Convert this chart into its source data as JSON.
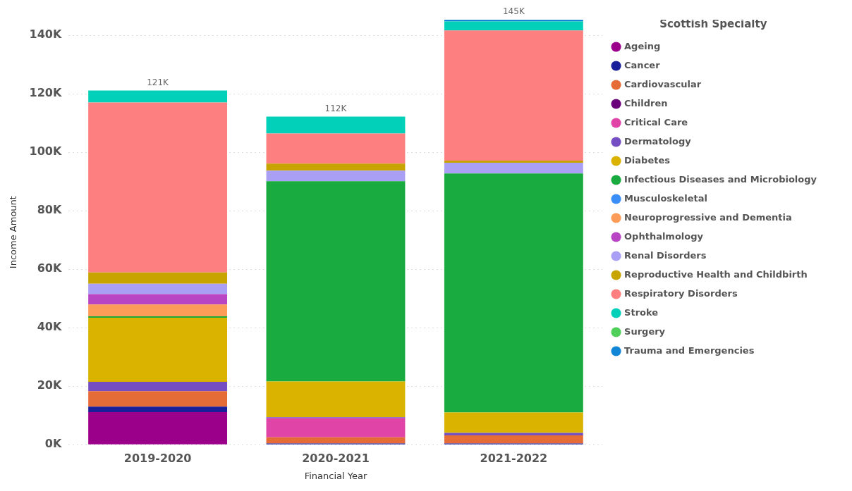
{
  "chart_data": {
    "type": "bar",
    "stacked": true,
    "xlabel": "Financial Year",
    "ylabel": "Income Amount",
    "legend_title": "Scottish Specialty",
    "legend": "right",
    "grid": "y",
    "categories": [
      "2019-2020",
      "2020-2021",
      "2021-2022"
    ],
    "ylim": [
      0,
      145300
    ],
    "yticks": [
      {
        "value": 0,
        "label": "0K"
      },
      {
        "value": 20000,
        "label": "20K"
      },
      {
        "value": 40000,
        "label": "40K"
      },
      {
        "value": 60000,
        "label": "60K"
      },
      {
        "value": 80000,
        "label": "80K"
      },
      {
        "value": 100000,
        "label": "100K"
      },
      {
        "value": 120000,
        "label": "120K"
      },
      {
        "value": 140000,
        "label": "140K"
      }
    ],
    "totals": [
      "121K",
      "112K",
      "145K"
    ],
    "series": [
      {
        "name": "Ageing",
        "color": "#9b008a",
        "values": [
          11100,
          null,
          null
        ]
      },
      {
        "name": "Cancer",
        "color": "#1a1f9a",
        "values": [
          1900,
          400,
          400
        ]
      },
      {
        "name": "Cardiovascular",
        "color": "#e66c37",
        "values": [
          5300,
          2100,
          2800
        ]
      },
      {
        "name": "Children",
        "color": "#6b007b",
        "values": [
          null,
          null,
          null
        ]
      },
      {
        "name": "Critical Care",
        "color": "#e044a7",
        "values": [
          null,
          6500,
          null
        ]
      },
      {
        "name": "Dermatology",
        "color": "#744ec2",
        "values": [
          3200,
          400,
          800
        ]
      },
      {
        "name": "Diabetes",
        "color": "#d9b300",
        "values": [
          21900,
          12200,
          7000
        ]
      },
      {
        "name": "Infectious Diseases and Microbiology",
        "color": "#1aab40",
        "values": [
          500,
          68500,
          81700
        ]
      },
      {
        "name": "Musculoskeletal",
        "color": "#3a8ef5",
        "values": [
          null,
          null,
          null
        ]
      },
      {
        "name": "Neuroprogressive and Dementia",
        "color": "#fd9b58",
        "values": [
          4000,
          null,
          null
        ]
      },
      {
        "name": "Ophthalmology",
        "color": "#b845c3",
        "values": [
          3600,
          null,
          null
        ]
      },
      {
        "name": "Renal Disorders",
        "color": "#a9a0f5",
        "values": [
          3500,
          3600,
          3700
        ]
      },
      {
        "name": "Reproductive Health and Childbirth",
        "color": "#c8a400",
        "values": [
          3900,
          2400,
          700
        ]
      },
      {
        "name": "Respiratory Disorders",
        "color": "#fe7f7f",
        "values": [
          58100,
          10300,
          44500
        ]
      },
      {
        "name": "Stroke",
        "color": "#02d0b8",
        "values": [
          4100,
          5800,
          3100
        ]
      },
      {
        "name": "Surgery",
        "color": "#50d05a",
        "values": [
          null,
          null,
          null
        ]
      },
      {
        "name": "Trauma and Emergencies",
        "color": "#1286d6",
        "values": [
          null,
          null,
          600
        ]
      }
    ]
  }
}
